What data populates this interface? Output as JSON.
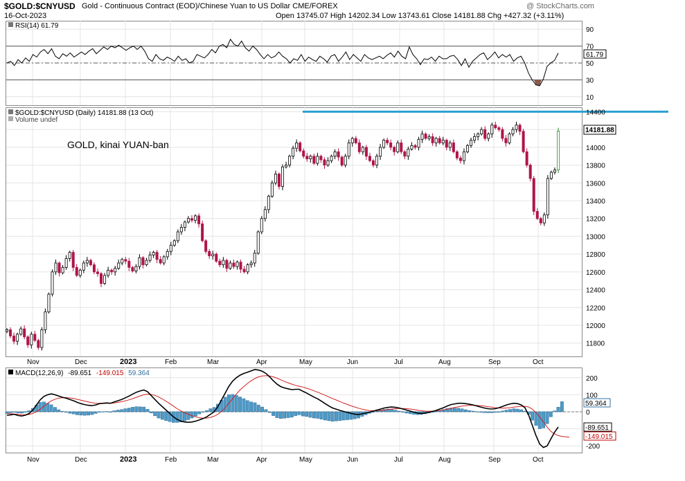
{
  "header": {
    "symbol": "$GOLD:$CNYUSD",
    "description": "Gold - Continuous Contract (EOD)/Chinese Yuan to US Dollar  CME/FOREX",
    "date": "16-Oct-2023",
    "ohlc": "Open 13745.07  High 14202.34  Low 13743.61  Close 14181.88  Chg +427.32 (+3.11%)",
    "watermark": "@ StockCharts.com"
  },
  "chart_data": [
    {
      "type": "line",
      "panel": "rsi",
      "legend": "RSI(14) 61.79",
      "last_value_label": "61.79",
      "ylim": [
        0,
        100
      ],
      "yticks": [
        "90",
        "70",
        "50",
        "30",
        "10"
      ],
      "reference_lines": [
        70,
        50,
        30
      ],
      "series": [
        {
          "values": [
            50,
            52,
            47,
            54,
            50,
            56,
            52,
            60,
            57,
            63,
            66,
            61,
            67,
            58,
            55,
            61,
            58,
            62,
            57,
            60,
            63,
            60,
            64,
            67,
            61,
            65,
            69,
            66,
            70,
            68,
            71,
            68,
            65,
            68,
            70,
            66,
            70,
            64,
            55,
            52,
            60,
            55,
            53,
            57,
            55,
            52,
            58,
            53,
            55,
            50,
            52,
            60,
            58,
            56,
            60,
            66,
            62,
            70,
            72,
            68,
            78,
            72,
            70,
            76,
            68,
            64,
            70,
            66,
            60,
            55,
            60,
            56,
            58,
            63,
            58,
            55,
            50,
            55,
            53,
            60,
            52,
            57,
            54,
            52,
            58,
            55,
            51,
            58,
            60,
            52,
            57,
            63,
            54,
            60,
            56,
            52,
            60,
            56,
            54,
            56,
            58,
            55,
            59,
            62,
            57,
            64,
            58,
            55,
            69,
            60,
            55,
            48,
            55,
            54,
            57,
            52,
            58,
            55,
            55,
            58,
            59,
            54,
            47,
            55,
            45,
            52,
            56,
            60,
            62,
            54,
            58,
            63,
            56,
            60,
            57,
            60,
            52,
            56,
            58,
            50,
            38,
            30,
            24,
            23,
            31,
            46,
            50,
            53,
            61.79
          ]
        }
      ]
    },
    {
      "type": "candlestick",
      "panel": "price",
      "legend": "$GOLD:$CNYUSD (Daily) 14181.88 (13 Oct)",
      "sub_legend": "Volume undef",
      "annotation": "GOLD, kinai YUAN-ban",
      "last_value_label": "14181.88",
      "horizontal_line": 14400,
      "ylim": [
        11650,
        14450
      ],
      "yticks": [
        "14400",
        "14200",
        "14000",
        "13800",
        "13600",
        "13400",
        "13200",
        "13000",
        "12800",
        "12600",
        "12400",
        "12200",
        "12000",
        "11800"
      ],
      "series": [
        {
          "values": [
            11950,
            11880,
            11820,
            11900,
            11960,
            11870,
            11780,
            11900,
            11830,
            11750,
            11950,
            12150,
            12350,
            12600,
            12700,
            12590,
            12650,
            12750,
            12820,
            12650,
            12560,
            12620,
            12700,
            12730,
            12680,
            12600,
            12580,
            12470,
            12560,
            12620,
            12600,
            12640,
            12700,
            12740,
            12720,
            12650,
            12610,
            12660,
            12760,
            12680,
            12730,
            12790,
            12820,
            12740,
            12700,
            12770,
            12830,
            12900,
            12950,
            13050,
            13100,
            13160,
            13200,
            13180,
            13230,
            13140,
            12950,
            12830,
            12780,
            12800,
            12720,
            12680,
            12730,
            12640,
            12700,
            12660,
            12710,
            12630,
            12600,
            12680,
            12700,
            12810,
            13050,
            13200,
            13300,
            13450,
            13600,
            13700,
            13560,
            13780,
            13800,
            13900,
            13990,
            14050,
            13960,
            13900,
            13870,
            13900,
            13820,
            13900,
            13860,
            13800,
            13850,
            13900,
            13950,
            13890,
            13800,
            13900,
            14050,
            14100,
            14050,
            13950,
            14000,
            13900,
            13850,
            13800,
            13900,
            14000,
            14080,
            14050,
            14000,
            13950,
            14050,
            13950,
            13900,
            13980,
            14020,
            14000,
            14090,
            14150,
            14100,
            14120,
            14050,
            14100,
            14050,
            14080,
            14000,
            14050,
            13950,
            13880,
            13850,
            13950,
            14020,
            14080,
            14120,
            14150,
            14200,
            14100,
            14150,
            14250,
            14220,
            14200,
            14100,
            14050,
            14150,
            14200,
            14250,
            14180,
            13950,
            13800,
            13650,
            13280,
            13200,
            13150,
            13240,
            13650,
            13720,
            13745,
            14181.88
          ]
        }
      ]
    },
    {
      "type": "line",
      "panel": "macd",
      "legend_label": "MACD(12,26,9)",
      "legend_macd": "-89.651",
      "legend_signal": "-149.015",
      "legend_hist": "59.364",
      "label_hist": "59.364",
      "label_macd": "-89.651",
      "label_signal": "-149.015",
      "ylim": [
        -240,
        260
      ],
      "yticks": [
        "200",
        "100",
        "0",
        "-100",
        "-200"
      ],
      "series": [
        {
          "values": [
            -20,
            -18,
            -15,
            -22,
            -25,
            -20,
            -10,
            10,
            40,
            70,
            90,
            100,
            105,
            100,
            92,
            85,
            80,
            72,
            65,
            55,
            48,
            42,
            38,
            36,
            40,
            48,
            50,
            52,
            50,
            58,
            65,
            72,
            82,
            92,
            104,
            115,
            122,
            128,
            118,
            95,
            72,
            50,
            30,
            10,
            -10,
            -30,
            -45,
            -55,
            -60,
            -62,
            -60,
            -55,
            -48,
            -40,
            -30,
            -15,
            0,
            30,
            70,
            110,
            150,
            180,
            200,
            215,
            225,
            232,
            240,
            248,
            245,
            238,
            225,
            205,
            182,
            162,
            148,
            140,
            135,
            130,
            132,
            132,
            120,
            110,
            98,
            86,
            76,
            62,
            48,
            34,
            22,
            15,
            8,
            2,
            -4,
            -10,
            -14,
            -16,
            -12,
            -8,
            -2,
            4,
            10,
            16,
            22,
            26,
            28,
            26,
            22,
            16,
            10,
            4,
            -2,
            -8,
            -10,
            -8,
            -4,
            2,
            8,
            16,
            24,
            34,
            42,
            46,
            50,
            50,
            48,
            44,
            40,
            34,
            28,
            22,
            18,
            16,
            18,
            24,
            32,
            40,
            46,
            50,
            48,
            40,
            24,
            -20,
            -80,
            -140,
            -190,
            -210,
            -200,
            -160,
            -120,
            -89.651
          ]
        },
        {
          "values": [
            -10,
            -12,
            -13,
            -15,
            -17,
            -18,
            -16,
            -10,
            0,
            15,
            32,
            50,
            64,
            74,
            80,
            82,
            83,
            81,
            78,
            73,
            68,
            63,
            58,
            53,
            50,
            49,
            49,
            50,
            50,
            52,
            55,
            59,
            64,
            70,
            77,
            85,
            93,
            100,
            103,
            102,
            96,
            87,
            75,
            62,
            48,
            33,
            18,
            5,
            -6,
            -15,
            -23,
            -30,
            -35,
            -38,
            -37,
            -33,
            -26,
            -15,
            2,
            24,
            50,
            78,
            104,
            128,
            148,
            166,
            182,
            195,
            205,
            210,
            212,
            210,
            205,
            197,
            188,
            178,
            170,
            162,
            155,
            150,
            145,
            138,
            131,
            123,
            115,
            106,
            97,
            87,
            78,
            69,
            60,
            51,
            43,
            35,
            28,
            21,
            15,
            10,
            7,
            6,
            6,
            8,
            10,
            13,
            16,
            18,
            19,
            19,
            18,
            16,
            13,
            9,
            6,
            4,
            3,
            4,
            5,
            8,
            11,
            15,
            20,
            25,
            29,
            33,
            36,
            38,
            38,
            37,
            36,
            33,
            30,
            27,
            24,
            22,
            21,
            22,
            24,
            27,
            30,
            32,
            32,
            28,
            15,
            -5,
            -30,
            -60,
            -90,
            -115,
            -130,
            -140,
            -145,
            -147,
            -149.015
          ]
        },
        {
          "values": [
            -10,
            -6,
            -2,
            -7,
            -8,
            -2,
            6,
            20,
            40,
            55,
            58,
            50,
            41,
            26,
            12,
            3,
            -3,
            -9,
            -13,
            -18,
            -20,
            -21,
            -20,
            -17,
            -10,
            -1,
            1,
            2,
            0,
            6,
            10,
            13,
            18,
            22,
            27,
            30,
            29,
            28,
            15,
            -7,
            -24,
            -37,
            -45,
            -52,
            -58,
            -63,
            -63,
            -60,
            -54,
            -47,
            -37,
            -25,
            -13,
            -2,
            7,
            18,
            26,
            45,
            68,
            86,
            100,
            102,
            96,
            87,
            77,
            66,
            58,
            53,
            40,
            28,
            13,
            -5,
            -23,
            -35,
            -40,
            -38,
            -35,
            -32,
            -23,
            -18,
            -25,
            -28,
            -33,
            -37,
            -39,
            -44,
            -49,
            -53,
            -56,
            -54,
            -52,
            -49,
            -47,
            -45,
            -42,
            -37,
            -27,
            -18,
            -9,
            -3,
            4,
            10,
            14,
            16,
            15,
            10,
            4,
            -3,
            -8,
            -12,
            -15,
            -17,
            -16,
            -12,
            -7,
            -2,
            3,
            8,
            13,
            19,
            22,
            21,
            21,
            17,
            12,
            7,
            4,
            1,
            -2,
            -5,
            -6,
            -6,
            -4,
            0,
            5,
            10,
            14,
            18,
            16,
            12,
            4,
            -15,
            -50,
            -80,
            -100,
            -95,
            -70,
            -30,
            5,
            27,
            59.364
          ]
        }
      ]
    }
  ],
  "x_axis": {
    "labels": [
      "Nov",
      "Dec",
      "2023",
      "Feb",
      "Mar",
      "Apr",
      "May",
      "Jun",
      "Jul",
      "Aug",
      "Sep",
      "Oct"
    ],
    "positions": [
      47,
      116,
      181,
      246,
      307,
      378,
      440,
      509,
      577,
      641,
      713,
      777
    ]
  }
}
